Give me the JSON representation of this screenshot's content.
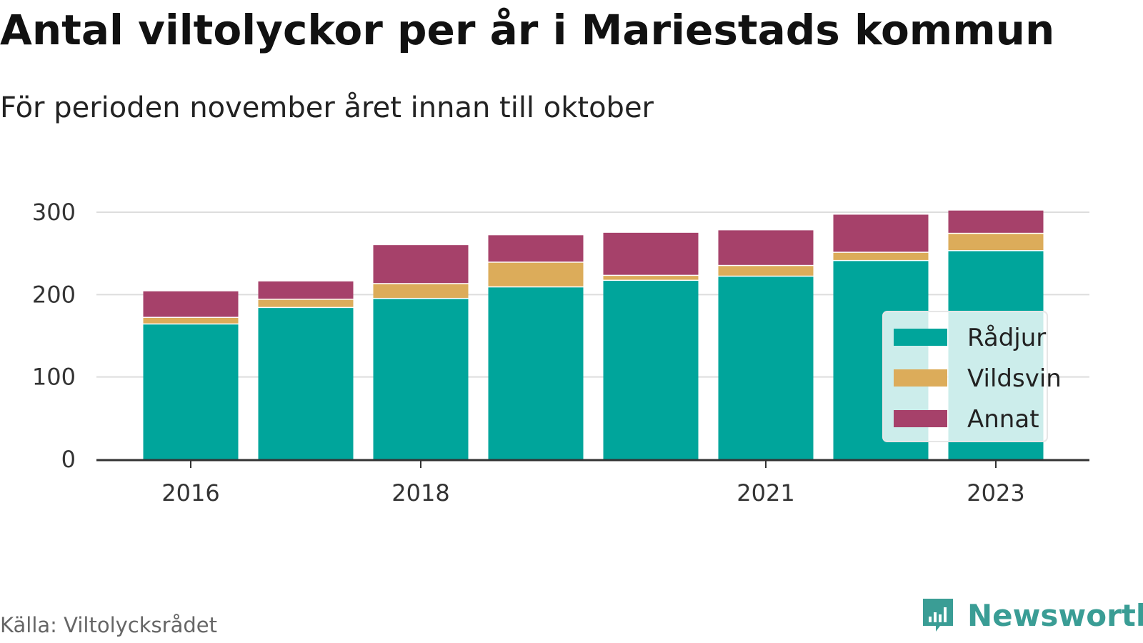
{
  "title": "Antal viltolyckor per år i Mariestads kommun",
  "subtitle": "För perioden november året innan till oktober",
  "source": "Källa: Viltolycksrådet",
  "brand": {
    "name": "Newsworthy",
    "icon": "newsworthy-logo-icon",
    "color": "#3a9d95"
  },
  "chart_data": {
    "type": "bar",
    "stacked": true,
    "categories": [
      "2016",
      "2017",
      "2018",
      "2019",
      "2020",
      "2021",
      "2022",
      "2023"
    ],
    "x_tick_labels": [
      "2016",
      "2018",
      "2021",
      "2023"
    ],
    "ylim": [
      0,
      300
    ],
    "y_ticks": [
      "0",
      "100",
      "200",
      "300"
    ],
    "grid": true,
    "legend_position": "bottom-right",
    "series": [
      {
        "name": "Rådjur",
        "color": "#00a59b",
        "values": [
          165,
          185,
          196,
          210,
          218,
          223,
          242,
          254
        ]
      },
      {
        "name": "Vildsvin",
        "color": "#dcac5a",
        "values": [
          8,
          10,
          18,
          30,
          6,
          13,
          10,
          21
        ]
      },
      {
        "name": "Annat",
        "color": "#a6416a",
        "values": [
          31,
          21,
          46,
          32,
          51,
          42,
          45,
          27
        ]
      }
    ]
  }
}
